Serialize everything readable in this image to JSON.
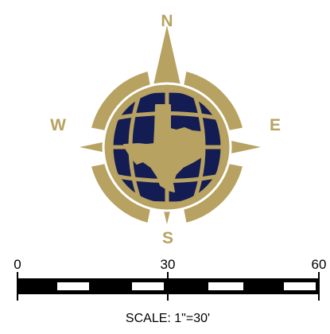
{
  "compass": {
    "north_label": "N",
    "east_label": "E",
    "south_label": "S",
    "west_label": "W",
    "rose_icon": "compass-rose-icon",
    "globe_icon": "globe-icon",
    "state_icon": "texas-state-icon"
  },
  "scale_bar": {
    "tick_start": "0",
    "tick_mid": "30",
    "tick_end": "60",
    "caption": "SCALE: 1\"=30'"
  },
  "colors": {
    "gold": "#b7a261",
    "navy": "#141c54",
    "black": "#000000",
    "white": "#ffffff"
  }
}
